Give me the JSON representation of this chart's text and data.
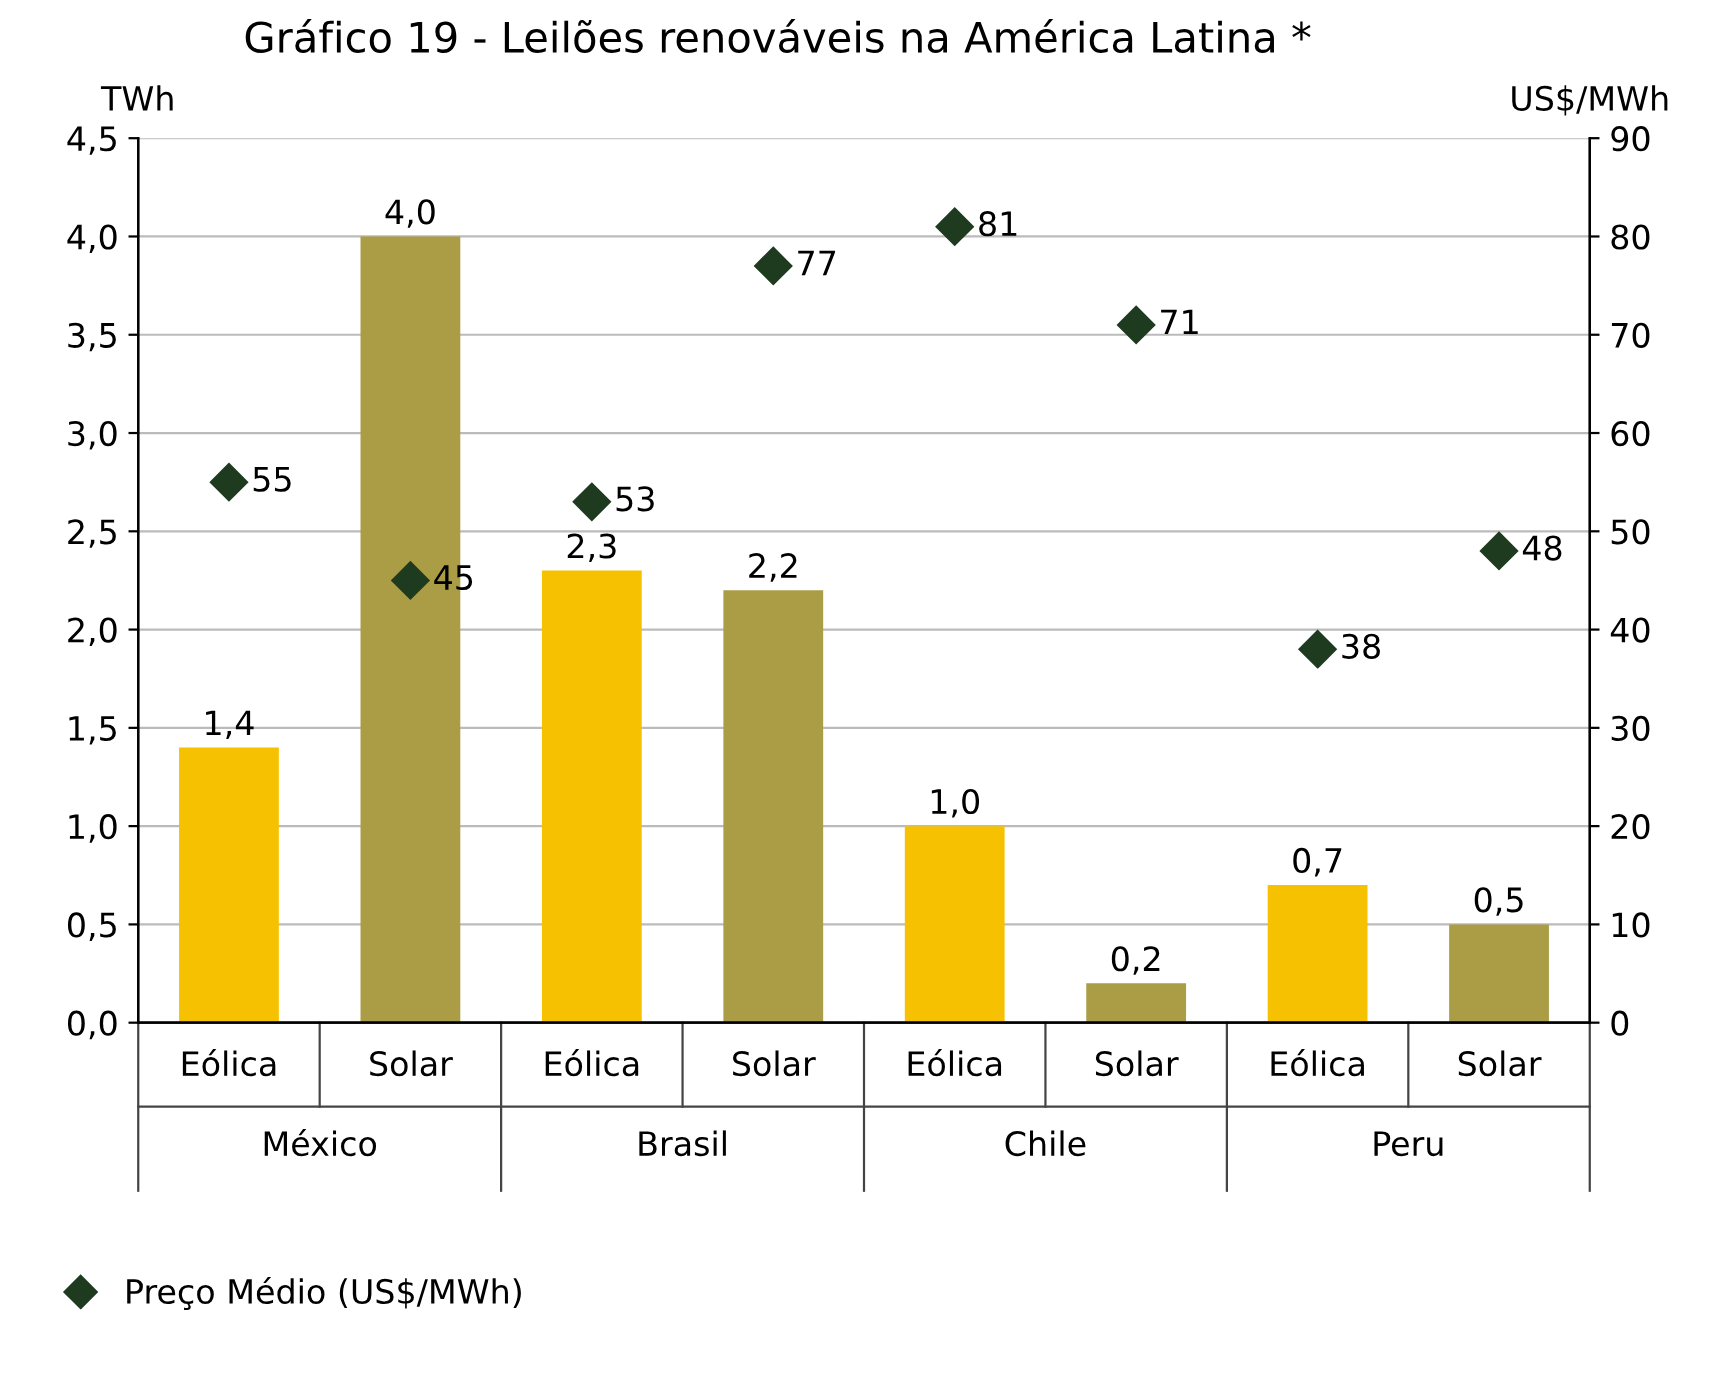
{
  "chart_data": {
    "type": "bar",
    "title": "Gráfico 19 - Leilões renováveis na América Latina *",
    "categories": [
      "Eólica",
      "Solar",
      "Eólica",
      "Solar",
      "Eólica",
      "Solar",
      "Eólica",
      "Solar"
    ],
    "annotations": [
      "México",
      "Brasil",
      "Chile",
      "Peru"
    ],
    "ylabel": "TWh",
    "y2label": "US$/MWh",
    "series": [
      {
        "values": [
          1.4,
          4.0,
          2.3,
          2.2,
          1.0,
          0.2,
          0.7,
          0.5
        ],
        "colors": [
          "#f6c100",
          "#aa9d45",
          "#f6c100",
          "#aa9d45",
          "#f6c100",
          "#aa9d45",
          "#f6c100",
          "#aa9d45"
        ],
        "value_labels": [
          "1,4",
          "4,0",
          "2,3",
          "2,2",
          "1,0",
          "0,2",
          "0,7",
          "0,5"
        ]
      },
      {
        "type": "scatter",
        "name": "Preço Médio (US$/MWh)",
        "axis": "y2",
        "color": "#1f3b1f",
        "marker": "diamond",
        "values": [
          55,
          45,
          53,
          77,
          81,
          71,
          38,
          48
        ],
        "value_labels": [
          "55",
          "45",
          "53",
          "77",
          "81",
          "71",
          "38",
          "48"
        ]
      }
    ],
    "ylim": [
      0,
      4.5
    ],
    "yticks": [
      {
        "value": 0,
        "label": "0,0"
      },
      {
        "value": 0.5,
        "label": "0,5"
      },
      {
        "value": 1,
        "label": "1,0"
      },
      {
        "value": 1.5,
        "label": "1,5"
      },
      {
        "value": 2,
        "label": "2,0"
      },
      {
        "value": 2.5,
        "label": "2,5"
      },
      {
        "value": 3,
        "label": "3,0"
      },
      {
        "value": 3.5,
        "label": "3,5"
      },
      {
        "value": 4,
        "label": "4,0"
      },
      {
        "value": 4.5,
        "label": "4,5"
      }
    ],
    "y2lim": [
      0,
      90
    ],
    "y2ticks": [
      0,
      10,
      20,
      30,
      40,
      50,
      60,
      70,
      80,
      90
    ],
    "grid": "y",
    "legend": "bottom left"
  }
}
